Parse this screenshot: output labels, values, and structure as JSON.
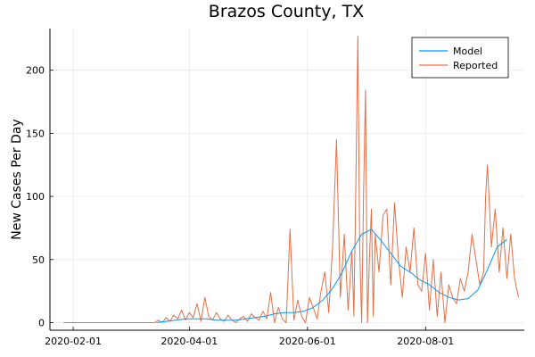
{
  "chart_data": {
    "type": "line",
    "title": "Brazos County, TX",
    "xlabel": "",
    "ylabel": "New Cases Per Day",
    "x_ticks": [
      "2020-02-01",
      "2020-04-01",
      "2020-06-01",
      "2020-08-01"
    ],
    "y_ticks": [
      0,
      50,
      100,
      150,
      200
    ],
    "xlim": [
      "2020-01-20",
      "2020-09-21"
    ],
    "ylim": [
      -6,
      233
    ],
    "grid": true,
    "legend_position": "top-right",
    "series": [
      {
        "name": "Model",
        "color": "#009af9",
        "x": [
          "2020-03-15",
          "2020-03-20",
          "2020-03-25",
          "2020-03-30",
          "2020-04-05",
          "2020-04-10",
          "2020-04-15",
          "2020-04-20",
          "2020-04-25",
          "2020-04-30",
          "2020-05-05",
          "2020-05-10",
          "2020-05-15",
          "2020-05-20",
          "2020-05-25",
          "2020-05-30",
          "2020-06-04",
          "2020-06-09",
          "2020-06-14",
          "2020-06-19",
          "2020-06-24",
          "2020-06-29",
          "2020-07-04",
          "2020-07-09",
          "2020-07-14",
          "2020-07-19",
          "2020-07-24",
          "2020-07-29",
          "2020-08-03",
          "2020-08-08",
          "2020-08-13",
          "2020-08-18",
          "2020-08-23",
          "2020-08-28",
          "2020-09-02",
          "2020-09-07",
          "2020-09-12"
        ],
        "values": [
          0,
          1,
          2,
          3,
          3,
          3,
          2,
          2,
          2,
          3,
          4,
          5,
          7,
          8,
          8,
          9,
          12,
          18,
          27,
          40,
          57,
          70,
          74,
          65,
          55,
          45,
          40,
          34,
          30,
          24,
          20,
          18,
          19,
          26,
          42,
          60,
          66
        ]
      },
      {
        "name": "Reported",
        "color": "#e26f46",
        "x": [
          "2020-01-27",
          "2020-03-14",
          "2020-03-16",
          "2020-03-18",
          "2020-03-20",
          "2020-03-22",
          "2020-03-24",
          "2020-03-26",
          "2020-03-28",
          "2020-03-30",
          "2020-04-01",
          "2020-04-03",
          "2020-04-05",
          "2020-04-07",
          "2020-04-09",
          "2020-04-11",
          "2020-04-13",
          "2020-04-15",
          "2020-04-17",
          "2020-04-19",
          "2020-04-21",
          "2020-04-23",
          "2020-04-25",
          "2020-04-27",
          "2020-04-29",
          "2020-05-01",
          "2020-05-03",
          "2020-05-05",
          "2020-05-07",
          "2020-05-09",
          "2020-05-11",
          "2020-05-13",
          "2020-05-15",
          "2020-05-17",
          "2020-05-19",
          "2020-05-21",
          "2020-05-23",
          "2020-05-25",
          "2020-05-27",
          "2020-05-29",
          "2020-05-31",
          "2020-06-02",
          "2020-06-04",
          "2020-06-06",
          "2020-06-08",
          "2020-06-10",
          "2020-06-12",
          "2020-06-14",
          "2020-06-16",
          "2020-06-18",
          "2020-06-20",
          "2020-06-22",
          "2020-06-24",
          "2020-06-25",
          "2020-06-26",
          "2020-06-27",
          "2020-06-28",
          "2020-06-29",
          "2020-06-30",
          "2020-07-01",
          "2020-07-02",
          "2020-07-03",
          "2020-07-04",
          "2020-07-05",
          "2020-07-06",
          "2020-07-08",
          "2020-07-10",
          "2020-07-12",
          "2020-07-14",
          "2020-07-16",
          "2020-07-18",
          "2020-07-20",
          "2020-07-22",
          "2020-07-24",
          "2020-07-26",
          "2020-07-28",
          "2020-07-30",
          "2020-08-01",
          "2020-08-03",
          "2020-08-05",
          "2020-08-07",
          "2020-08-09",
          "2020-08-11",
          "2020-08-13",
          "2020-08-15",
          "2020-08-17",
          "2020-08-19",
          "2020-08-21",
          "2020-08-23",
          "2020-08-25",
          "2020-08-27",
          "2020-08-29",
          "2020-08-31",
          "2020-09-01",
          "2020-09-02",
          "2020-09-04",
          "2020-09-06",
          "2020-09-08",
          "2020-09-10",
          "2020-09-12",
          "2020-09-14",
          "2020-09-16",
          "2020-09-18"
        ],
        "values": [
          0,
          0,
          2,
          0,
          4,
          1,
          6,
          3,
          10,
          2,
          8,
          4,
          15,
          1,
          20,
          5,
          2,
          8,
          3,
          1,
          6,
          2,
          0,
          3,
          5,
          1,
          7,
          4,
          2,
          9,
          3,
          24,
          0,
          12,
          3,
          0,
          74,
          2,
          18,
          5,
          0,
          20,
          12,
          3,
          25,
          40,
          8,
          60,
          145,
          20,
          70,
          10,
          56,
          5,
          110,
          227,
          60,
          0,
          105,
          184,
          0,
          50,
          90,
          5,
          70,
          40,
          85,
          90,
          30,
          95,
          50,
          20,
          60,
          40,
          75,
          30,
          25,
          55,
          10,
          50,
          5,
          40,
          0,
          30,
          20,
          15,
          35,
          25,
          40,
          70,
          50,
          30,
          40,
          100,
          125,
          60,
          90,
          40,
          75,
          35,
          70,
          35,
          20
        ]
      }
    ]
  }
}
